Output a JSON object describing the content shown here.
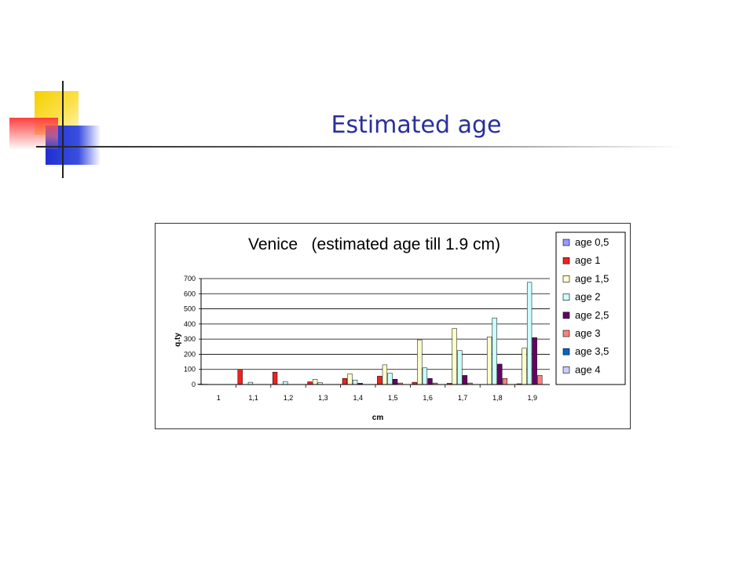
{
  "slide": {
    "title": "Estimated age"
  },
  "colors": {
    "title": "#2a2f9c",
    "deco_yellow": "#f6d000",
    "deco_blue": "#1f2fd0",
    "deco_red": "#ff4040"
  },
  "chart_data": {
    "type": "bar",
    "title": "Venice   (estimated age till 1.9 cm)",
    "xlabel": "cm",
    "ylabel": "q.ty",
    "ylim": [
      0,
      700
    ],
    "yticks": [
      "0",
      "100",
      "200",
      "300",
      "400",
      "500",
      "600",
      "700"
    ],
    "categories": [
      "1",
      "1,1",
      "1,2",
      "1,3",
      "1,4",
      "1,5",
      "1,6",
      "1,7",
      "1,8",
      "1,9"
    ],
    "grid": true,
    "legend_position": "right",
    "series": [
      {
        "name": "age 0,5",
        "color": "#9999ff",
        "values": [
          3,
          0,
          0,
          0,
          0,
          0,
          0,
          0,
          0,
          0
        ]
      },
      {
        "name": "age 1",
        "color": "#ee2222",
        "values": [
          2,
          100,
          82,
          18,
          40,
          55,
          15,
          8,
          0,
          5
        ]
      },
      {
        "name": "age 1,5",
        "color": "#ffffcc",
        "values": [
          0,
          0,
          0,
          35,
          70,
          130,
          295,
          370,
          315,
          240
        ]
      },
      {
        "name": "age 2",
        "color": "#ccffff",
        "values": [
          0,
          15,
          20,
          12,
          30,
          75,
          110,
          225,
          440,
          675
        ]
      },
      {
        "name": "age 2,5",
        "color": "#660066",
        "values": [
          0,
          0,
          0,
          0,
          8,
          35,
          40,
          60,
          135,
          310
        ]
      },
      {
        "name": "age 3",
        "color": "#ff8080",
        "values": [
          0,
          0,
          0,
          0,
          0,
          10,
          10,
          10,
          40,
          60
        ]
      },
      {
        "name": "age 3,5",
        "color": "#0066cc",
        "values": [
          0,
          0,
          0,
          0,
          0,
          0,
          0,
          0,
          0,
          0
        ]
      },
      {
        "name": "age 4",
        "color": "#ccccff",
        "values": [
          0,
          0,
          0,
          0,
          0,
          0,
          0,
          0,
          0,
          0
        ]
      }
    ]
  }
}
